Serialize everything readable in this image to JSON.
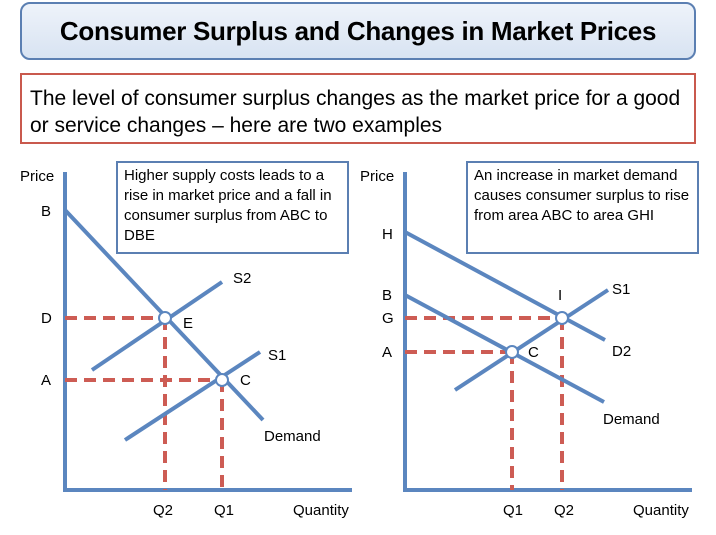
{
  "title": "Consumer Surplus and Changes in Market Prices",
  "intro": "The level of consumer surplus changes as the market price for a good or service changes – here are two examples",
  "left_panel": {
    "note": "Higher supply costs leads to a rise in market price and a fall in consumer surplus from ABC to DBE",
    "y_axis_label": "Price",
    "x_axis_label": "Quantity",
    "price_labels": {
      "b": "B",
      "d": "D",
      "a": "A"
    },
    "quantity_labels": {
      "q2": "Q2",
      "q1": "Q1"
    },
    "point_labels": {
      "e": "E",
      "c": "C"
    },
    "curve_labels": {
      "s2": "S2",
      "s1": "S1",
      "demand": "Demand"
    }
  },
  "right_panel": {
    "note": "An increase in market demand causes consumer surplus to rise from area ABC to area GHI",
    "y_axis_label": "Price",
    "x_axis_label": "Quantity",
    "price_labels": {
      "h": "H",
      "b": "B",
      "g": "G",
      "a": "A"
    },
    "quantity_labels": {
      "q1": "Q1",
      "q2": "Q2"
    },
    "point_labels": {
      "i": "I",
      "c": "C"
    },
    "curve_labels": {
      "s1": "S1",
      "d2": "D2",
      "demand": "Demand"
    }
  },
  "colors": {
    "curve": "#5b86bf",
    "dashed_guide": "#cd5c54",
    "axis": "#5b86bf",
    "title_border": "#5b7fb2",
    "intro_border": "#c9594d"
  }
}
